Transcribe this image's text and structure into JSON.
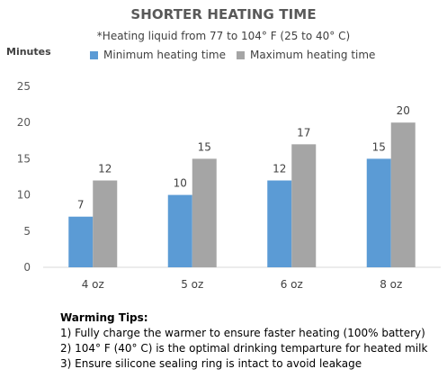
{
  "colors": {
    "minimum": "#5B9BD5",
    "maximum": "#A5A5A5",
    "axis": "#D9D9D9"
  },
  "chart_data": {
    "type": "bar",
    "title": "SHORTER HEATING TIME",
    "subtitle": "*Heating liquid from 77 to 104° F (25 to 40° C)",
    "ylabel": "Minutes",
    "categories": [
      "4 oz",
      "5 oz",
      "6 oz",
      "8 oz"
    ],
    "series": [
      {
        "name": "Minimum heating time",
        "values": [
          7,
          10,
          12,
          15
        ]
      },
      {
        "name": "Maximum heating time",
        "values": [
          12,
          15,
          17,
          20
        ]
      }
    ],
    "ylim": [
      0,
      25
    ],
    "yticks": [
      "0",
      "5",
      "10",
      "15",
      "20",
      "25"
    ],
    "grid": false,
    "legend_position": "top"
  },
  "tips": {
    "heading": "Warming Tips:",
    "items": [
      "1) Fully charge the warmer to ensure faster heating (100% battery)",
      "2) 104° F (40° C) is the optimal drinking temparture for heated milk",
      "3) Ensure silicone sealing ring is intact to avoid leakage"
    ]
  }
}
